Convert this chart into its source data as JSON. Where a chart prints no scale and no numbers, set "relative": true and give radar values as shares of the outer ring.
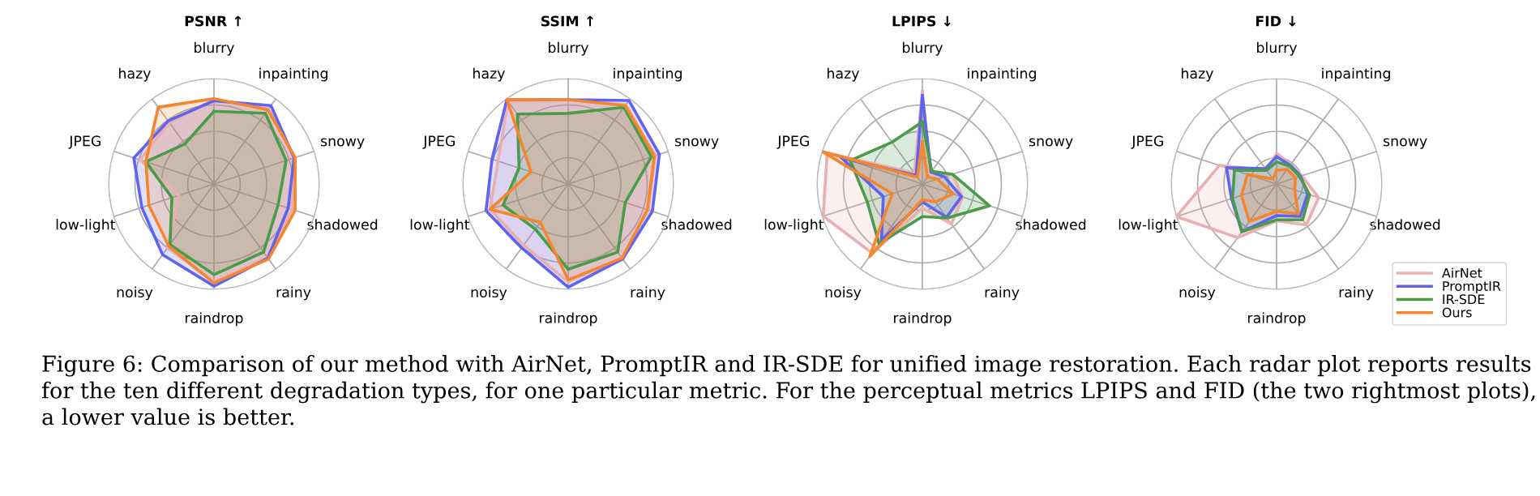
{
  "chart_data": [
    {
      "type": "radar",
      "title": "PSNR ↑",
      "relative": true,
      "grid": true,
      "legend": false,
      "categories": [
        "blurry",
        "inpainting",
        "snowy",
        "shadowed",
        "rainy",
        "raindrop",
        "noisy",
        "low-light",
        "JPEG",
        "hazy"
      ],
      "series": [
        {
          "color": "#e8b0b0",
          "values": [
            0.8,
            0.88,
            0.8,
            0.78,
            0.86,
            0.93,
            0.75,
            0.35,
            0.74,
            0.72
          ]
        },
        {
          "color": "#5f63f0",
          "values": [
            0.79,
            0.92,
            0.8,
            0.74,
            0.87,
            0.97,
            0.83,
            0.72,
            0.8,
            0.74
          ]
        },
        {
          "color": "#4a9c4a",
          "values": [
            0.69,
            0.83,
            0.72,
            0.64,
            0.8,
            0.86,
            0.71,
            0.42,
            0.68,
            0.47
          ]
        },
        {
          "color": "#f5862e",
          "values": [
            0.81,
            0.87,
            0.81,
            0.81,
            0.88,
            0.94,
            0.73,
            0.65,
            0.68,
            0.9
          ]
        }
      ]
    },
    {
      "type": "radar",
      "title": "SSIM ↑",
      "relative": true,
      "grid": true,
      "legend": false,
      "categories": [
        "blurry",
        "inpainting",
        "snowy",
        "shadowed",
        "rainy",
        "raindrop",
        "noisy",
        "low-light",
        "JPEG",
        "hazy"
      ],
      "series": [
        {
          "color": "#e8b0b0",
          "values": [
            0.8,
            0.93,
            0.87,
            0.8,
            0.87,
            0.93,
            0.72,
            0.78,
            0.7,
            0.97
          ]
        },
        {
          "color": "#5f63f0",
          "values": [
            0.8,
            0.98,
            0.91,
            0.84,
            0.88,
            0.98,
            0.75,
            0.82,
            0.76,
            0.99
          ]
        },
        {
          "color": "#4a9c4a",
          "values": [
            0.67,
            0.9,
            0.83,
            0.57,
            0.8,
            0.81,
            0.53,
            0.65,
            0.49,
            0.82
          ]
        },
        {
          "color": "#f5862e",
          "values": [
            0.8,
            0.92,
            0.86,
            0.79,
            0.87,
            0.91,
            0.45,
            0.78,
            0.37,
            0.99
          ]
        }
      ]
    },
    {
      "type": "radar",
      "title": "LPIPS ↓",
      "relative": true,
      "grid": true,
      "legend": false,
      "categories": [
        "blurry",
        "inpainting",
        "snowy",
        "shadowed",
        "rainy",
        "raindrop",
        "noisy",
        "low-light",
        "JPEG",
        "hazy"
      ],
      "series": [
        {
          "color": "#e8b0b0",
          "values": [
            0.88,
            0.12,
            0.3,
            0.4,
            0.47,
            0.23,
            0.81,
            0.99,
            0.95,
            0.13
          ]
        },
        {
          "color": "#5f63f0",
          "values": [
            0.84,
            0.14,
            0.22,
            0.39,
            0.39,
            0.17,
            0.66,
            0.39,
            0.81,
            0.1
          ]
        },
        {
          "color": "#4a9c4a",
          "values": [
            0.59,
            0.15,
            0.3,
            0.67,
            0.4,
            0.31,
            0.7,
            0.55,
            0.72,
            0.49
          ]
        },
        {
          "color": "#f5862e",
          "values": [
            0.4,
            0.08,
            0.15,
            0.31,
            0.21,
            0.15,
            0.85,
            0.3,
            1.0,
            0.08
          ]
        }
      ]
    },
    {
      "type": "radar",
      "title": "FID ↓",
      "relative": true,
      "grid": true,
      "legend": "bottom right",
      "categories": [
        "blurry",
        "inpainting",
        "snowy",
        "shadowed",
        "rainy",
        "raindrop",
        "noisy",
        "low-light",
        "JPEG",
        "hazy"
      ],
      "series": [
        {
          "name": "AirNet",
          "color": "#e8b0b0",
          "values": [
            0.29,
            0.23,
            0.25,
            0.42,
            0.48,
            0.35,
            0.63,
            1.0,
            0.57,
            0.16
          ]
        },
        {
          "name": "PromptIR",
          "color": "#5f63f0",
          "values": [
            0.26,
            0.22,
            0.24,
            0.31,
            0.38,
            0.3,
            0.56,
            0.45,
            0.5,
            0.18
          ]
        },
        {
          "name": "IR-SDE",
          "color": "#4a9c4a",
          "values": [
            0.21,
            0.21,
            0.23,
            0.33,
            0.42,
            0.34,
            0.56,
            0.44,
            0.42,
            0.16
          ]
        },
        {
          "name": "Ours",
          "color": "#f5862e",
          "values": [
            0.13,
            0.17,
            0.19,
            0.18,
            0.35,
            0.26,
            0.44,
            0.35,
            0.29,
            0.06
          ]
        }
      ],
      "annotations": [
        "Figure 6: Comparison of our method with AirNet, PromptIR and IR-SDE for unified image restoration. Each radar plot reports results for the ten different degradation types, for one particular metric. For the perceptual metrics LPIPS and FID (the two rightmost plots), a lower value is better."
      ]
    }
  ]
}
